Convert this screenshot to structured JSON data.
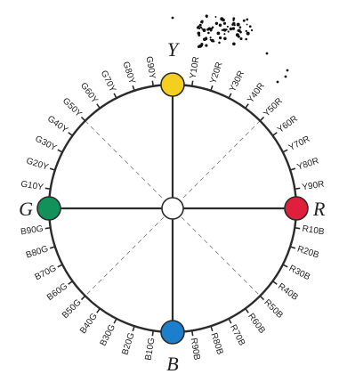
{
  "diagram": {
    "poles": {
      "top": {
        "letter": "Y",
        "color": "#F5CF1E",
        "name": "yellow"
      },
      "right": {
        "letter": "R",
        "color": "#E01F3D",
        "name": "red"
      },
      "bottom": {
        "letter": "B",
        "color": "#1C7FCC",
        "name": "blue"
      },
      "left": {
        "letter": "G",
        "color": "#12925A",
        "name": "green"
      }
    },
    "quadrants": [
      [
        "Y10R",
        "Y20R",
        "Y30R",
        "Y40R",
        "Y50R",
        "Y60R",
        "Y70R",
        "Y80R",
        "Y90R"
      ],
      [
        "R10B",
        "R20B",
        "R30B",
        "R40B",
        "R50B",
        "R60B",
        "R70B",
        "R80B",
        "R90B"
      ],
      [
        "B10G",
        "B20G",
        "B30G",
        "B40G",
        "B50G",
        "B60G",
        "B70G",
        "B80G",
        "B90G"
      ],
      [
        "G10Y",
        "G20Y",
        "G30Y",
        "G40Y",
        "G50Y",
        "G60Y",
        "G70Y",
        "G80Y",
        "G90Y"
      ]
    ],
    "colors": {
      "ring": "#2b2b2b",
      "axis": "#2b2b2b",
      "diagonal": "#777777",
      "center_fill": "#ffffff"
    }
  }
}
